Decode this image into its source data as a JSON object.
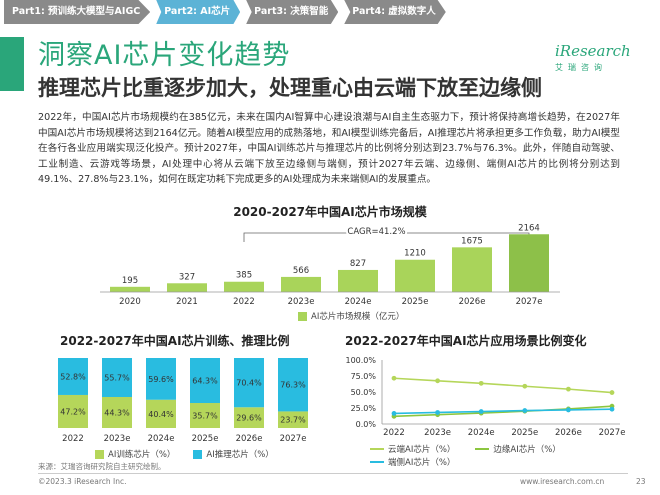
{
  "tabs": [
    {
      "label": "Part1: 预训练大模型与AIGC",
      "active": false
    },
    {
      "label": "Part2: AI芯片",
      "active": true
    },
    {
      "label": "Part3: 决策智能",
      "active": false
    },
    {
      "label": "Part4: 虚拟数字人",
      "active": false
    }
  ],
  "title": "洞察AI芯片变化趋势",
  "subtitle": "推理芯片比重逐步加大，处理重心由云端下放至边缘侧",
  "logo": {
    "main": "iResearch",
    "sub": "艾瑞咨询"
  },
  "paragraph": "2022年，中国AI芯片市场规模约在385亿元，未来在国内AI智算中心建设浪潮与AI自主生态驱力下，预计将保持高增长趋势，在2027年中国AI芯片市场规模将达到2164亿元。随着AI模型应用的成熟落地，和AI模型训练完备后，AI推理芯片将承担更多工作负载，助力AI模型在各行各业应用端实现泛化投产。预计2027年，中国AI训练芯片与推理芯片的比例将分别达到23.7%与76.3%。此外，伴随自动驾驶、工业制造、云游戏等场景，AI处理中心将从云端下放至边缘侧与端侧，预计2027年云端、边缘侧、端侧AI芯片的比例将分别达到49.1%、27.8%与23.1%，如何在既定功耗下完成更多的AI处理成为未来端侧AI的发展重点。",
  "chart_data": [
    {
      "type": "bar",
      "title": "2020-2027年中国AI芯片市场规模",
      "categories": [
        "2020",
        "2021",
        "2022",
        "2023e",
        "2024e",
        "2025e",
        "2026e",
        "2027e"
      ],
      "series": [
        {
          "name": "AI芯片市场规模（亿元）",
          "values": [
            195,
            327,
            385,
            566,
            827,
            1210,
            1675,
            2164
          ]
        }
      ],
      "annotation": "CAGR=41.2%",
      "colors": {
        "bar": "#a9d45a",
        "bar_dark": "#5a9a2a"
      }
    },
    {
      "type": "bar",
      "stacked": true,
      "title": "2022-2027年中国AI芯片训练、推理比例",
      "categories": [
        "2022",
        "2023e",
        "2024e",
        "2025e",
        "2026e",
        "2027e"
      ],
      "series": [
        {
          "name": "AI训练芯片（%）",
          "values": [
            47.2,
            44.3,
            40.4,
            35.7,
            29.6,
            23.7
          ],
          "labels": [
            "47.2%",
            "44.3%",
            "40.4%",
            "35.7%",
            "29.6%",
            "23.7%"
          ],
          "color": "#b5d65a"
        },
        {
          "name": "AI推理芯片（%）",
          "values": [
            52.8,
            55.7,
            59.6,
            64.3,
            70.4,
            76.3
          ],
          "labels": [
            "52.8%",
            "55.7%",
            "59.6%",
            "64.3%",
            "70.4%",
            "76.3%"
          ],
          "color": "#29bce0"
        }
      ]
    },
    {
      "type": "line",
      "title": "2022-2027年中国AI芯片应用场景比例变化",
      "categories": [
        "2022",
        "2023e",
        "2024e",
        "2025e",
        "2026e",
        "2027e"
      ],
      "yticks": [
        "100.0%",
        "75.0%",
        "50.0%",
        "25.0%",
        "0.0%"
      ],
      "ylim": [
        0,
        100
      ],
      "series": [
        {
          "name": "云端AI芯片（%）",
          "values": [
            71.5,
            67.5,
            63.5,
            59.0,
            54.5,
            49.1
          ],
          "color": "#b5d65a"
        },
        {
          "name": "边缘AI芯片（%）",
          "values": [
            12.0,
            14.5,
            17.0,
            20.0,
            23.5,
            27.8
          ],
          "color": "#8cc63f"
        },
        {
          "name": "端侧AI芯片（%）",
          "values": [
            16.5,
            18.0,
            19.5,
            21.0,
            22.0,
            23.1
          ],
          "color": "#29bce0"
        }
      ]
    }
  ],
  "footer": {
    "source": "来源：艾瑞咨询研究院自主研究绘制。",
    "copyright": "©2023.3 iResearch Inc.",
    "website": "www.iresearch.com.cn",
    "page": "23"
  }
}
